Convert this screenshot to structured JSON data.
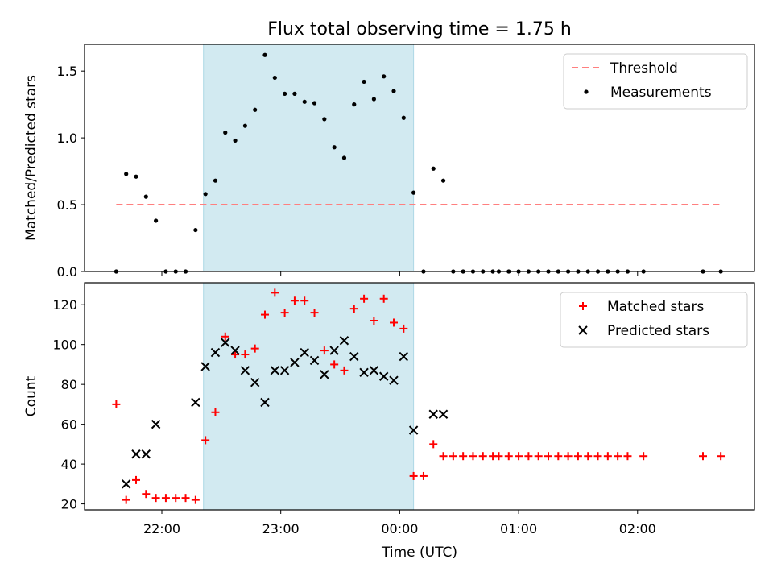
{
  "figure": {
    "title": "Flux total observing time = 1.75 h",
    "xlabel": "Time (UTC)",
    "xticks": [
      {
        "t": 0,
        "label": "22:00"
      },
      {
        "t": 60,
        "label": "23:00"
      },
      {
        "t": 120,
        "label": "00:00"
      },
      {
        "t": 180,
        "label": "01:00"
      },
      {
        "t": 240,
        "label": "02:00"
      }
    ],
    "xlim": [
      -39,
      299
    ],
    "shaded_span": [
      21,
      127
    ],
    "colors": {
      "shade": "#add8e6",
      "threshold": "#ff7f7f",
      "matched": "#ff0000",
      "predicted": "#000000",
      "measurement": "#000000"
    }
  },
  "chart_data": [
    {
      "type": "scatter",
      "ylabel": "Matched/Predicted stars",
      "ylim": [
        0,
        1.7
      ],
      "yticks": [
        "0.0",
        "0.5",
        "1.0",
        "1.5"
      ],
      "legend": {
        "position": "top-right"
      },
      "threshold": {
        "name": "Threshold",
        "value": 0.5,
        "x_range": [
          -23,
          283
        ]
      },
      "series": [
        {
          "name": "Measurements",
          "points": [
            [
              -23,
              0
            ],
            [
              -18,
              0.73
            ],
            [
              -13,
              0.71
            ],
            [
              -8,
              0.56
            ],
            [
              -3,
              0.38
            ],
            [
              2,
              0
            ],
            [
              7,
              0
            ],
            [
              12,
              0
            ],
            [
              17,
              0.31
            ],
            [
              22,
              0.58
            ],
            [
              27,
              0.68
            ],
            [
              32,
              1.04
            ],
            [
              37,
              0.98
            ],
            [
              42,
              1.09
            ],
            [
              47,
              1.21
            ],
            [
              52,
              1.62
            ],
            [
              57,
              1.45
            ],
            [
              62,
              1.33
            ],
            [
              67,
              1.33
            ],
            [
              72,
              1.27
            ],
            [
              77,
              1.26
            ],
            [
              82,
              1.14
            ],
            [
              87,
              0.93
            ],
            [
              92,
              0.85
            ],
            [
              97,
              1.25
            ],
            [
              102,
              1.42
            ],
            [
              107,
              1.29
            ],
            [
              112,
              1.46
            ],
            [
              117,
              1.35
            ],
            [
              122,
              1.15
            ],
            [
              127,
              0.59
            ],
            [
              132,
              0
            ],
            [
              137,
              0.77
            ],
            [
              142,
              0.68
            ],
            [
              147,
              0
            ],
            [
              152,
              0
            ],
            [
              157,
              0
            ],
            [
              162,
              0
            ],
            [
              167,
              0
            ],
            [
              170,
              0
            ],
            [
              175,
              0
            ],
            [
              180,
              0
            ],
            [
              185,
              0
            ],
            [
              190,
              0
            ],
            [
              195,
              0
            ],
            [
              200,
              0
            ],
            [
              205,
              0
            ],
            [
              210,
              0
            ],
            [
              215,
              0
            ],
            [
              220,
              0
            ],
            [
              225,
              0
            ],
            [
              230,
              0
            ],
            [
              235,
              0
            ],
            [
              243,
              0
            ],
            [
              273,
              0
            ],
            [
              282,
              0
            ]
          ]
        }
      ]
    },
    {
      "type": "scatter",
      "ylabel": "Count",
      "ylim": [
        17,
        131
      ],
      "yticks": [
        "20",
        "40",
        "60",
        "80",
        "100",
        "120"
      ],
      "legend": {
        "position": "top-right"
      },
      "series": [
        {
          "name": "Matched stars",
          "marker": "plus",
          "points": [
            [
              -23,
              70
            ],
            [
              -18,
              22
            ],
            [
              -13,
              32
            ],
            [
              -8,
              25
            ],
            [
              -3,
              23
            ],
            [
              2,
              23
            ],
            [
              7,
              23
            ],
            [
              12,
              23
            ],
            [
              17,
              22
            ],
            [
              22,
              52
            ],
            [
              27,
              66
            ],
            [
              32,
              104
            ],
            [
              37,
              95
            ],
            [
              42,
              95
            ],
            [
              47,
              98
            ],
            [
              52,
              115
            ],
            [
              57,
              126
            ],
            [
              62,
              116
            ],
            [
              67,
              122
            ],
            [
              72,
              122
            ],
            [
              77,
              116
            ],
            [
              82,
              97
            ],
            [
              87,
              90
            ],
            [
              92,
              87
            ],
            [
              97,
              118
            ],
            [
              102,
              123
            ],
            [
              107,
              112
            ],
            [
              112,
              123
            ],
            [
              117,
              111
            ],
            [
              122,
              108
            ],
            [
              127,
              34
            ],
            [
              132,
              34
            ],
            [
              137,
              50
            ],
            [
              142,
              44
            ],
            [
              147,
              44
            ],
            [
              152,
              44
            ],
            [
              157,
              44
            ],
            [
              162,
              44
            ],
            [
              167,
              44
            ],
            [
              170,
              44
            ],
            [
              175,
              44
            ],
            [
              180,
              44
            ],
            [
              185,
              44
            ],
            [
              190,
              44
            ],
            [
              195,
              44
            ],
            [
              200,
              44
            ],
            [
              205,
              44
            ],
            [
              210,
              44
            ],
            [
              215,
              44
            ],
            [
              220,
              44
            ],
            [
              225,
              44
            ],
            [
              230,
              44
            ],
            [
              235,
              44
            ],
            [
              243,
              44
            ],
            [
              273,
              44
            ],
            [
              282,
              44
            ]
          ]
        },
        {
          "name": "Predicted stars",
          "marker": "x",
          "points": [
            [
              -18,
              30
            ],
            [
              -13,
              45
            ],
            [
              -8,
              45
            ],
            [
              -3,
              60
            ],
            [
              17,
              71
            ],
            [
              22,
              89
            ],
            [
              27,
              96
            ],
            [
              32,
              101
            ],
            [
              37,
              97
            ],
            [
              42,
              87
            ],
            [
              47,
              81
            ],
            [
              52,
              71
            ],
            [
              57,
              87
            ],
            [
              62,
              87
            ],
            [
              67,
              91
            ],
            [
              72,
              96
            ],
            [
              77,
              92
            ],
            [
              82,
              85
            ],
            [
              87,
              97
            ],
            [
              92,
              102
            ],
            [
              97,
              94
            ],
            [
              102,
              86
            ],
            [
              107,
              87
            ],
            [
              112,
              84
            ],
            [
              117,
              82
            ],
            [
              122,
              94
            ],
            [
              127,
              57
            ],
            [
              137,
              65
            ],
            [
              142,
              65
            ]
          ]
        }
      ]
    }
  ]
}
